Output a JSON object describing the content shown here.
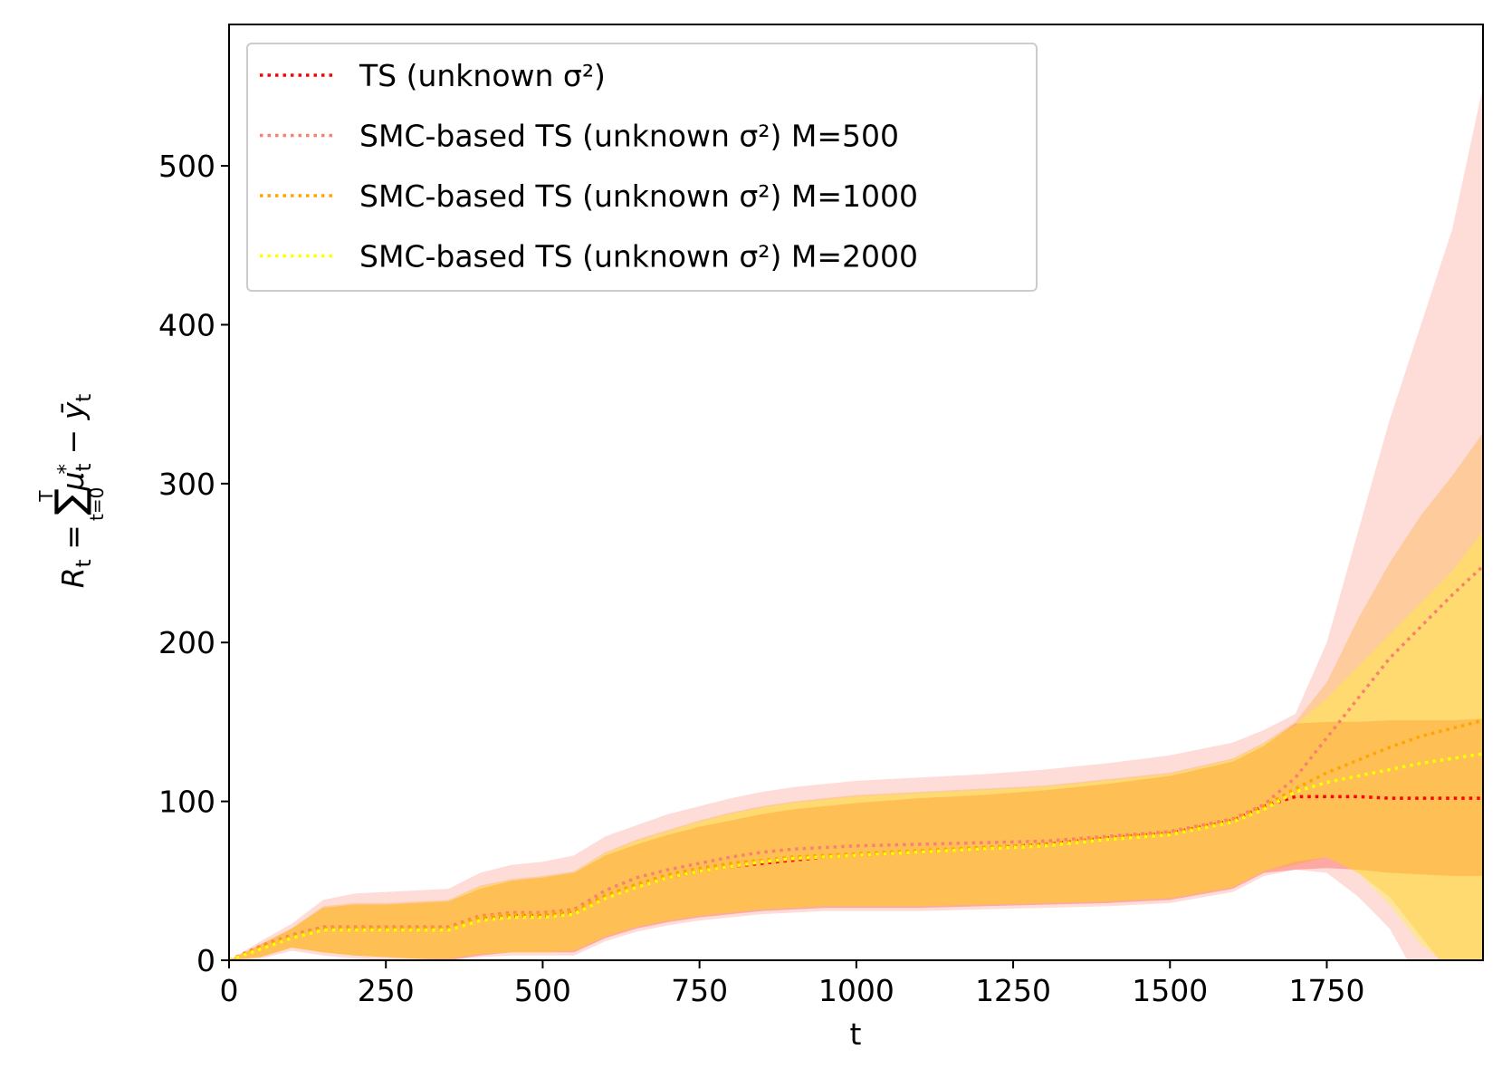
{
  "chart_data": {
    "type": "line",
    "x_label": "t",
    "y_label": [
      "R",
      "t",
      " = ",
      "∑",
      "t=0",
      "T",
      "μ",
      "t",
      "*",
      " − ",
      "ȳ",
      "t"
    ],
    "x": [
      0,
      50,
      100,
      150,
      200,
      250,
      300,
      350,
      400,
      450,
      500,
      550,
      600,
      650,
      700,
      750,
      800,
      850,
      900,
      950,
      1000,
      1100,
      1200,
      1300,
      1400,
      1500,
      1600,
      1650,
      1700,
      1750,
      1800,
      1850,
      1900,
      1950,
      1999
    ],
    "series": [
      {
        "name": "TS (unknown σ²)",
        "color": "#ff0000",
        "values": [
          0,
          8,
          15,
          20,
          20,
          20,
          20,
          20,
          26,
          28,
          28,
          30,
          40,
          47,
          52,
          56,
          59,
          61,
          63,
          65,
          66,
          68,
          70,
          73,
          77,
          80,
          88,
          97,
          103,
          103,
          103,
          102,
          102,
          102,
          102
        ],
        "lower": [
          0,
          2,
          8,
          5,
          3,
          2,
          1,
          0,
          3,
          5,
          5,
          5,
          14,
          20,
          24,
          27,
          29,
          31,
          32,
          33,
          33,
          33,
          34,
          35,
          36,
          38,
          45,
          55,
          57,
          58,
          57,
          55,
          54,
          53,
          53
        ],
        "upper": [
          0,
          10,
          20,
          33,
          35,
          35,
          36,
          37,
          45,
          50,
          52,
          55,
          66,
          73,
          79,
          84,
          88,
          92,
          95,
          97,
          99,
          102,
          104,
          107,
          111,
          116,
          125,
          135,
          149,
          150,
          150,
          151,
          151,
          151,
          152
        ]
      },
      {
        "name": "SMC-based TS (unknown σ²) M=500",
        "color": "#fa8072",
        "values": [
          0,
          9,
          16,
          21,
          21,
          21,
          21,
          21,
          28,
          30,
          30,
          32,
          44,
          52,
          57,
          61,
          65,
          68,
          70,
          71,
          72,
          73,
          74,
          75,
          78,
          81,
          89,
          98,
          115,
          140,
          165,
          190,
          210,
          230,
          248
        ],
        "lower": [
          0,
          1,
          6,
          3,
          1,
          0,
          0,
          0,
          2,
          3,
          3,
          3,
          12,
          18,
          22,
          25,
          27,
          29,
          30,
          31,
          31,
          31,
          32,
          33,
          34,
          36,
          43,
          53,
          57,
          55,
          40,
          20,
          -15,
          -40,
          -55
        ],
        "upper": [
          0,
          12,
          23,
          38,
          42,
          43,
          44,
          45,
          55,
          60,
          62,
          66,
          78,
          85,
          92,
          97,
          102,
          106,
          109,
          111,
          113,
          115,
          117,
          120,
          124,
          129,
          137,
          145,
          155,
          200,
          270,
          340,
          400,
          460,
          550
        ]
      },
      {
        "name": "SMC-based TS (unknown σ²) M=1000",
        "color": "#ffa500",
        "values": [
          0,
          8,
          15,
          20,
          20,
          20,
          20,
          20,
          27,
          29,
          29,
          31,
          41,
          48,
          54,
          58,
          61,
          63,
          65,
          66,
          67,
          69,
          71,
          73,
          77,
          80,
          88,
          97,
          108,
          118,
          126,
          134,
          141,
          146,
          151
        ],
        "lower": [
          0,
          2,
          8,
          5,
          3,
          2,
          1,
          1,
          4,
          5,
          5,
          6,
          15,
          21,
          25,
          28,
          30,
          32,
          33,
          34,
          34,
          34,
          35,
          36,
          37,
          39,
          46,
          56,
          60,
          65,
          55,
          40,
          15,
          -10,
          -30
        ],
        "upper": [
          0,
          10,
          20,
          34,
          36,
          36,
          37,
          38,
          47,
          51,
          53,
          56,
          68,
          76,
          82,
          88,
          93,
          97,
          100,
          102,
          104,
          106,
          108,
          110,
          114,
          118,
          127,
          137,
          150,
          175,
          215,
          250,
          280,
          305,
          332
        ]
      },
      {
        "name": "SMC-based TS (unknown σ²) M=2000",
        "color": "#ffff00",
        "values": [
          0,
          7,
          14,
          19,
          19,
          19,
          19,
          19,
          25,
          27,
          27,
          29,
          39,
          46,
          52,
          56,
          59,
          62,
          64,
          65,
          66,
          68,
          70,
          72,
          76,
          79,
          87,
          95,
          106,
          112,
          116,
          120,
          124,
          127,
          130
        ],
        "lower": [
          0,
          2,
          8,
          5,
          3,
          2,
          1,
          1,
          4,
          5,
          5,
          6,
          15,
          21,
          25,
          28,
          30,
          32,
          33,
          34,
          34,
          34,
          35,
          36,
          37,
          39,
          46,
          56,
          62,
          65,
          55,
          35,
          10,
          -5,
          -20
        ],
        "upper": [
          0,
          10,
          20,
          33,
          35,
          35,
          36,
          37,
          46,
          50,
          52,
          55,
          67,
          75,
          81,
          87,
          92,
          96,
          99,
          101,
          103,
          105,
          107,
          109,
          113,
          117,
          126,
          136,
          148,
          165,
          185,
          205,
          225,
          245,
          270
        ]
      }
    ],
    "xlim": [
      0,
      1999
    ],
    "ylim": [
      0,
      589
    ],
    "xticks": [
      0,
      250,
      500,
      750,
      1000,
      1250,
      1500,
      1750
    ],
    "yticks": [
      0,
      100,
      200,
      300,
      400,
      500
    ],
    "legend": "upper left",
    "grid": false
  }
}
